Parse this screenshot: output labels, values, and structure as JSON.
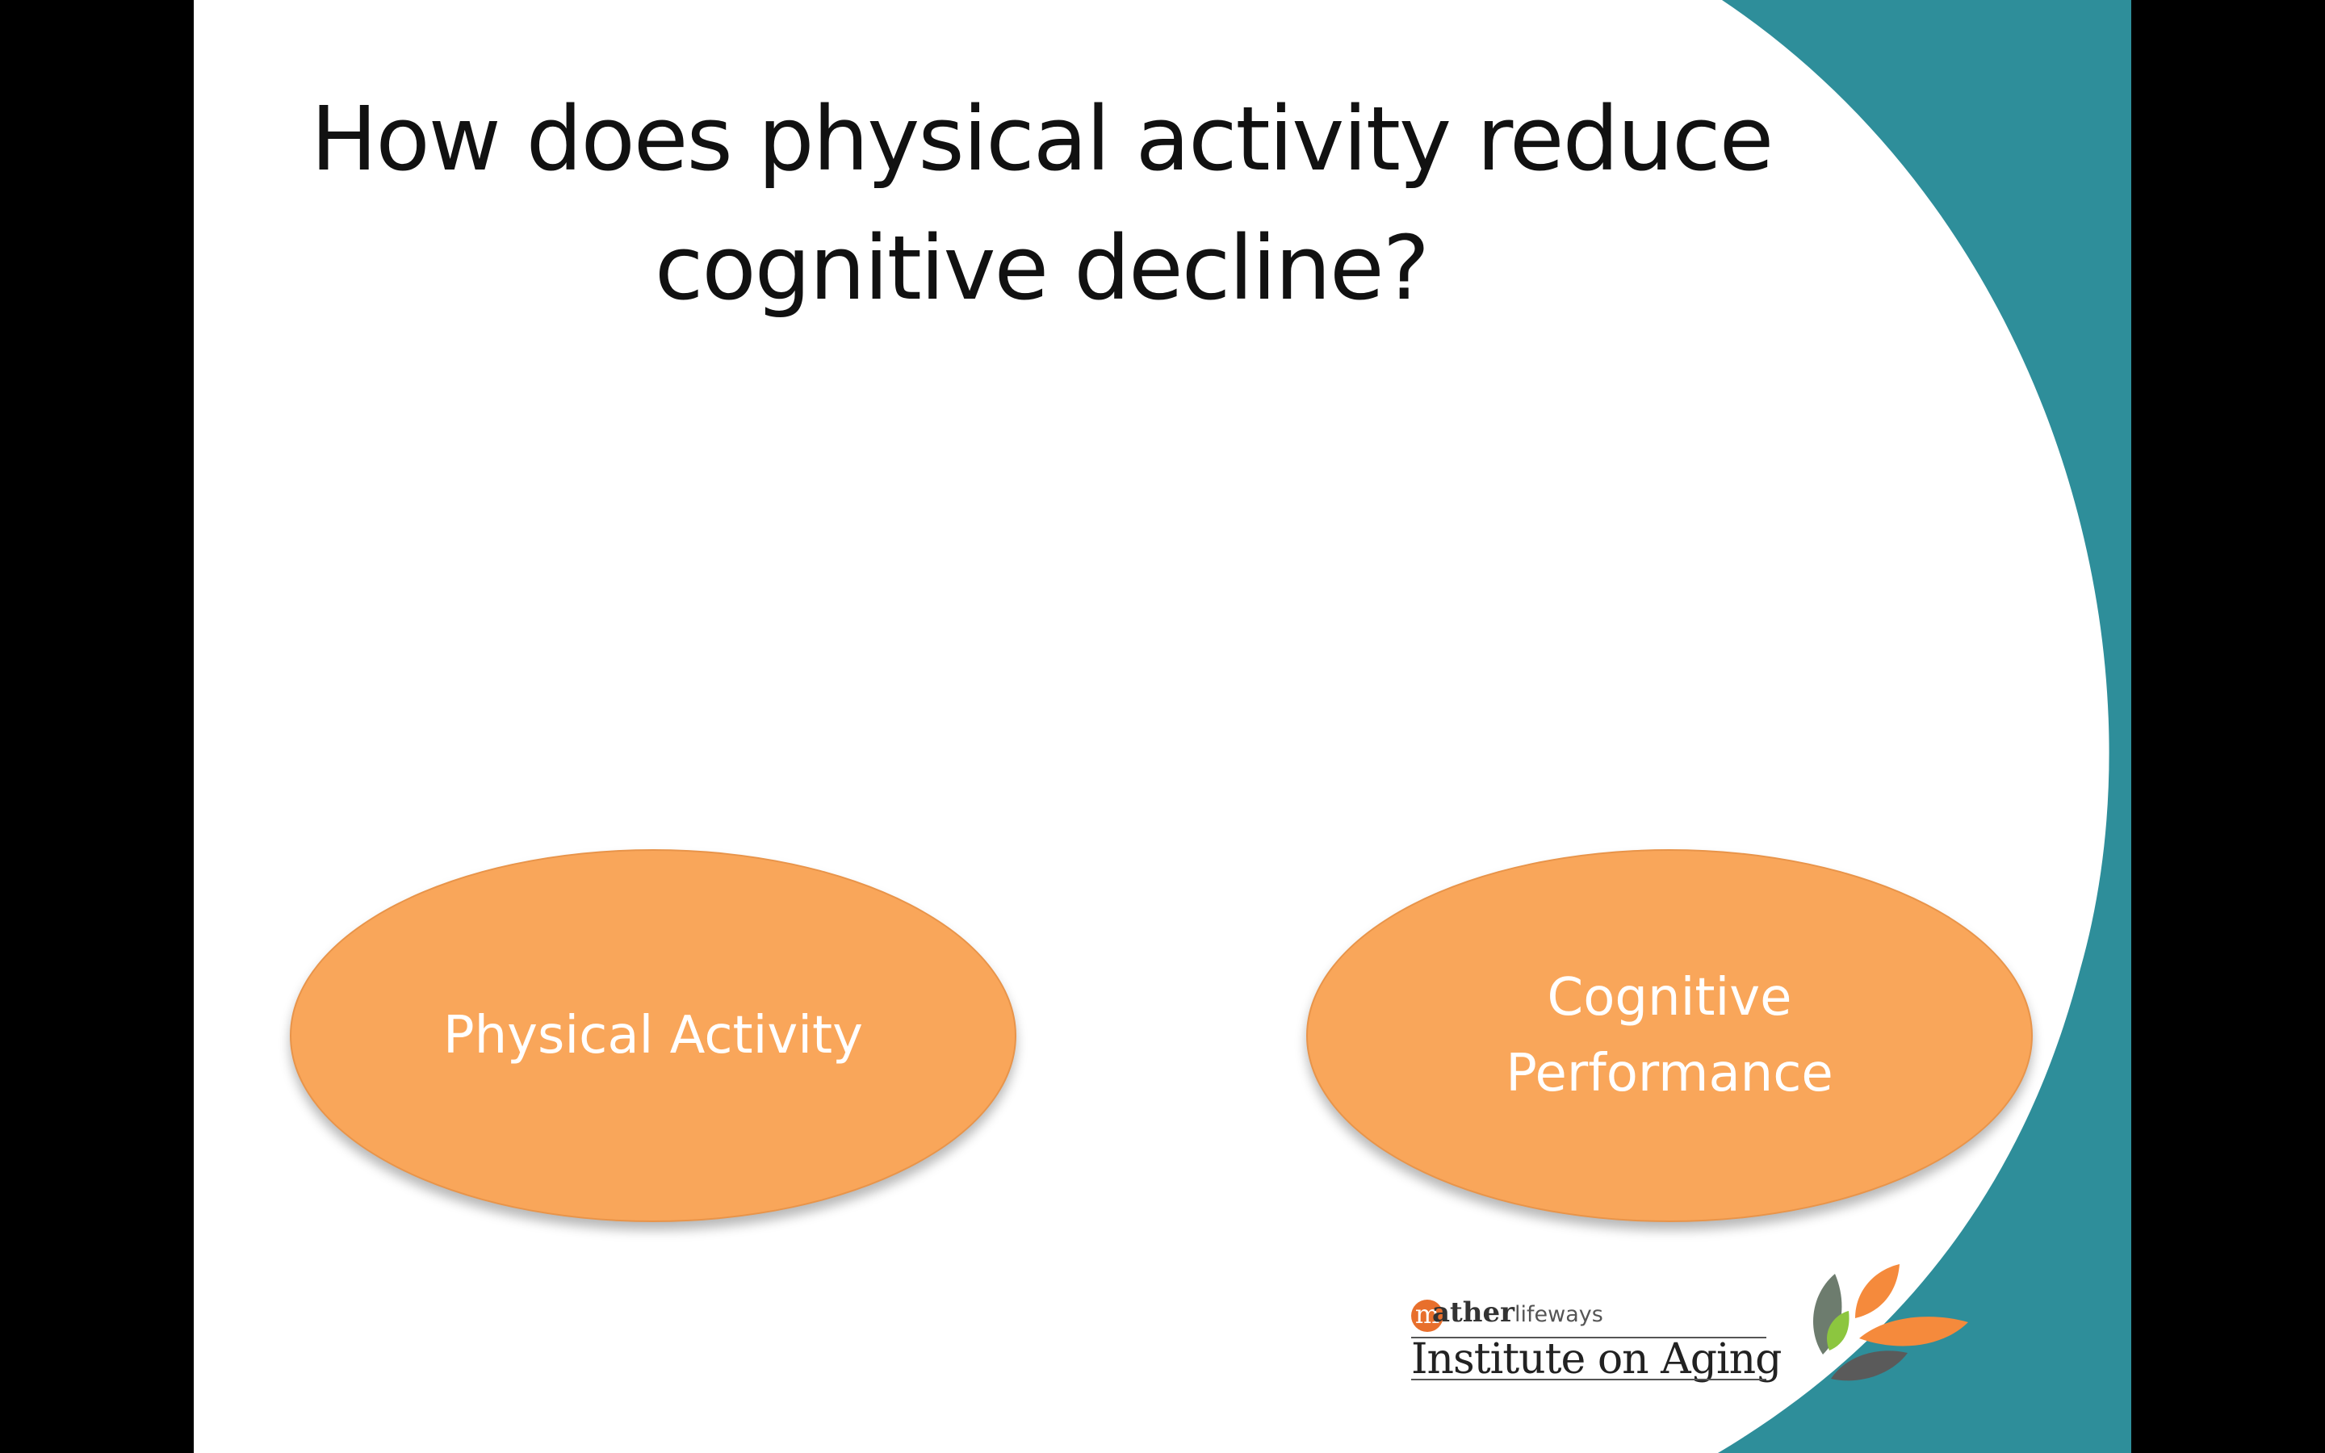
{
  "slide": {
    "title": "How does physical activity reduce cognitive decline?",
    "background_color": "#ffffff",
    "accent_color": "#2e8e9a"
  },
  "diagram": {
    "nodes": [
      {
        "id": "physical",
        "label": "Physical Activity",
        "color": "#f9a65a"
      },
      {
        "id": "cognitive",
        "label": "Cognitive Performance",
        "color": "#f9a65a"
      }
    ]
  },
  "logo": {
    "initial": "m",
    "brand_bold": "ather",
    "brand_light": "lifeways",
    "name": "Institute on Aging",
    "leaf_colors": [
      "#6d7c6e",
      "#8cc63f",
      "#f58a3c",
      "#5a5a5a"
    ]
  }
}
